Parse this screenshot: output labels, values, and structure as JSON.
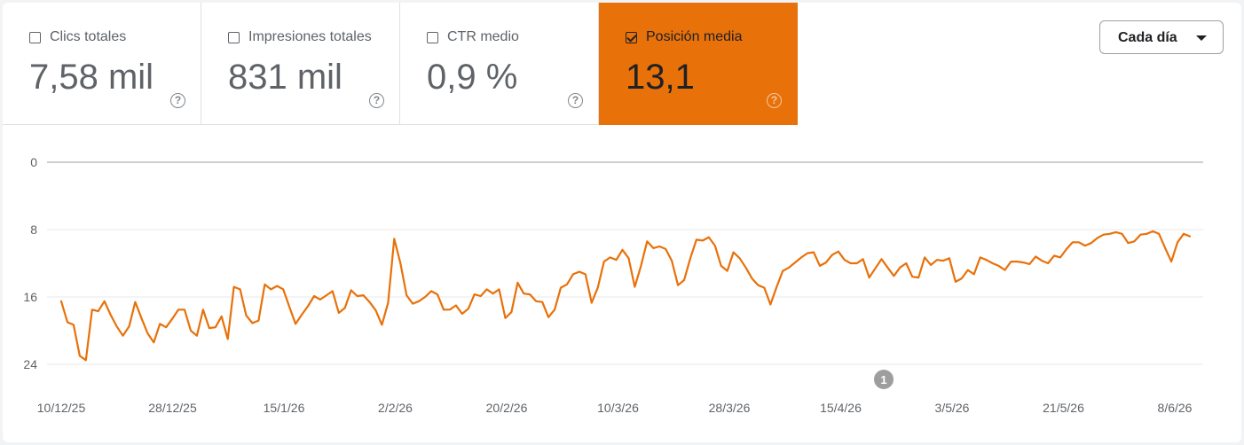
{
  "metrics": [
    {
      "label": "Clics totales",
      "value": "7,58 mil",
      "checked": false
    },
    {
      "label": "Impresiones totales",
      "value": "831 mil",
      "checked": false
    },
    {
      "label": "CTR medio",
      "value": "0,9 %",
      "checked": false
    },
    {
      "label": "Posición media",
      "value": "13,1",
      "checked": true
    }
  ],
  "help_glyph": "?",
  "period_select": {
    "label": "Cada día"
  },
  "colors": {
    "series": "#e8710a",
    "active_tile": "#e8710a",
    "grid": "#e8eaed",
    "axis": "#9aa0a6"
  },
  "chart_data": {
    "type": "line",
    "series": [
      {
        "values": [
          16.5,
          19,
          19.3,
          23,
          23.5,
          17.5,
          17.7,
          16.5,
          18.1,
          19.5,
          20.6,
          19.5,
          16.6,
          18.5,
          20.3,
          21.4,
          19.2,
          19.6,
          18.6,
          17.5,
          17.5,
          20,
          20.6,
          17.5,
          19.7,
          19.6,
          18.3,
          21,
          14.8,
          15.1,
          18.2,
          19.1,
          18.8,
          14.5,
          15.1,
          14.7,
          15.1,
          17.2,
          19.2,
          18.1,
          17.1,
          15.9,
          16.3,
          15.8,
          15.3,
          17.9,
          17.3,
          15.2,
          15.9,
          15.8,
          16.6,
          17.6,
          19.3,
          16.7,
          9.1,
          12,
          15.8,
          16.8,
          16.5,
          16,
          15.3,
          15.7,
          17.5,
          17.5,
          17,
          18,
          17.4,
          15.7,
          15.9,
          15.1,
          15.6,
          15.1,
          18.5,
          17.8,
          14.3,
          15.6,
          15.7,
          16.5,
          16.6,
          18.4,
          17.5,
          14.9,
          14.5,
          13.3,
          13,
          13.3,
          16.7,
          14.9,
          11.8,
          11.3,
          11.6,
          10.4,
          11.4,
          14.8,
          12.3,
          9.4,
          10.2,
          10,
          10.3,
          11.7,
          14.6,
          14,
          11.4,
          9.2,
          9.3,
          8.9,
          9.9,
          12.3,
          12.9,
          10.7,
          11.4,
          12.5,
          13.8,
          14.6,
          14.9,
          16.9,
          14.8,
          12.9,
          12.5,
          11.9,
          11.3,
          10.8,
          10.7,
          12.3,
          11.9,
          11,
          10.6,
          11.6,
          12,
          12,
          11.5,
          13.7,
          12.6,
          11.5,
          12.5,
          13.5,
          12.5,
          12,
          13.6,
          13.7,
          11.3,
          12.2,
          11.6,
          11.7,
          11.4,
          14.2,
          13.8,
          12.8,
          13.3,
          11.3,
          11.6,
          12,
          12.3,
          12.8,
          11.8,
          11.8,
          11.9,
          12.1,
          11.2,
          11.7,
          12,
          11.1,
          11.3,
          10.3,
          9.5,
          9.5,
          9.9,
          9.6,
          9,
          8.6,
          8.5,
          8.3,
          8.5,
          9.6,
          9.4,
          8.6,
          8.5,
          8.2,
          8.5,
          10.2,
          11.8,
          9.5,
          8.5,
          8.8
        ]
      }
    ],
    "x_tick_labels": [
      "10/12/25",
      "28/12/25",
      "15/1/26",
      "2/2/26",
      "20/2/26",
      "10/3/26",
      "28/3/26",
      "15/4/26",
      "3/5/26",
      "21/5/26",
      "8/6/26"
    ],
    "y_tick_labels": [
      "0",
      "8",
      "16",
      "24"
    ],
    "y_ticks": [
      0,
      8,
      16,
      24
    ],
    "ylim": [
      0,
      24
    ],
    "y_inverted": true,
    "annotations": [
      {
        "label": "1",
        "date": "24/4/26"
      }
    ],
    "grid": true
  }
}
